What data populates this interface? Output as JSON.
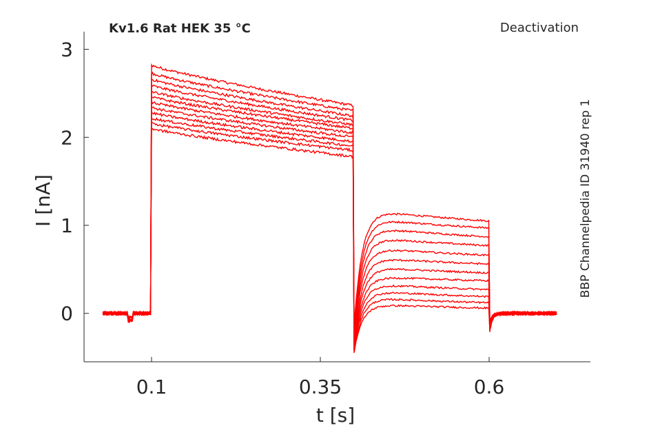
{
  "chart_data": {
    "type": "line",
    "title": "Kv1.6  Rat  HEK  35 °C",
    "protocol_label": "Deactivation",
    "side_label": "BBP Channelpedia ID 31940 rep 1",
    "xlabel": "t [s]",
    "ylabel": "I [nA]",
    "xlim": [
      0.0,
      0.75
    ],
    "ylim": [
      -0.55,
      3.2
    ],
    "xticks": [
      0.1,
      0.35,
      0.6
    ],
    "xtick_labels": [
      "0.1",
      "0.35",
      "0.6"
    ],
    "yticks": [
      0,
      1,
      2,
      3
    ],
    "ytick_labels": [
      "0",
      "1",
      "2",
      "3"
    ],
    "grid": false,
    "line_color": "#ff0000",
    "sweep_count": 12,
    "segments_s": [
      0.028,
      0.1,
      0.4,
      0.6,
      0.7
    ],
    "step_peak_nA": [
      2.82,
      2.73,
      2.66,
      2.59,
      2.52,
      2.46,
      2.4,
      2.34,
      2.28,
      2.22,
      2.16,
      2.1
    ],
    "step_end_nA": [
      2.36,
      2.3,
      2.24,
      2.19,
      2.14,
      2.1,
      2.05,
      2.0,
      1.95,
      1.9,
      1.85,
      1.78
    ],
    "tail_start_nA": [
      1.22,
      1.12,
      1.02,
      0.9,
      0.78,
      0.66,
      0.55,
      0.44,
      0.36,
      0.28,
      0.2,
      0.12
    ],
    "tail_end_nA": [
      1.05,
      0.97,
      0.87,
      0.77,
      0.66,
      0.56,
      0.46,
      0.37,
      0.27,
      0.19,
      0.12,
      0.06
    ],
    "tail_dip_nA": [
      -0.15,
      -0.2,
      -0.25,
      -0.3,
      -0.33,
      -0.36,
      -0.38,
      -0.4,
      -0.41,
      -0.42,
      -0.43,
      -0.44
    ]
  }
}
